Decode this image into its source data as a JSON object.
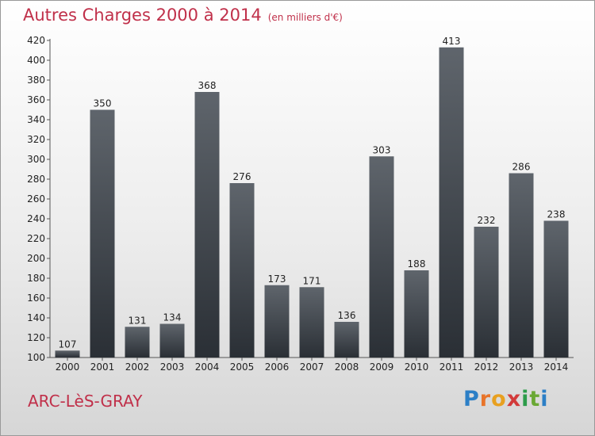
{
  "header": {
    "title": "Autres Charges 2000 à 2014",
    "subtitle": "(en milliers d'€)"
  },
  "footer": {
    "commune": "ARC-LèS-GRAY",
    "logo": "Proxiti"
  },
  "colors": {
    "title": "#c0304a",
    "bar_top": "#5f656c",
    "bar_bottom": "#2a2f35"
  },
  "chart_data": {
    "type": "bar",
    "title": "Autres Charges 2000 à 2014",
    "subtitle": "(en milliers d'€)",
    "categories": [
      "2000",
      "2001",
      "2002",
      "2003",
      "2004",
      "2005",
      "2006",
      "2007",
      "2008",
      "2009",
      "2010",
      "2011",
      "2012",
      "2013",
      "2014"
    ],
    "values": [
      107,
      350,
      131,
      134,
      368,
      276,
      173,
      171,
      136,
      303,
      188,
      413,
      232,
      286,
      238
    ],
    "yticks": [
      "100",
      "120",
      "140",
      "160",
      "180",
      "200",
      "220",
      "240",
      "260",
      "280",
      "300",
      "320",
      "340",
      "360",
      "380",
      "400",
      "420"
    ],
    "ylim": [
      100,
      420
    ],
    "grid": false,
    "legend": "none"
  }
}
